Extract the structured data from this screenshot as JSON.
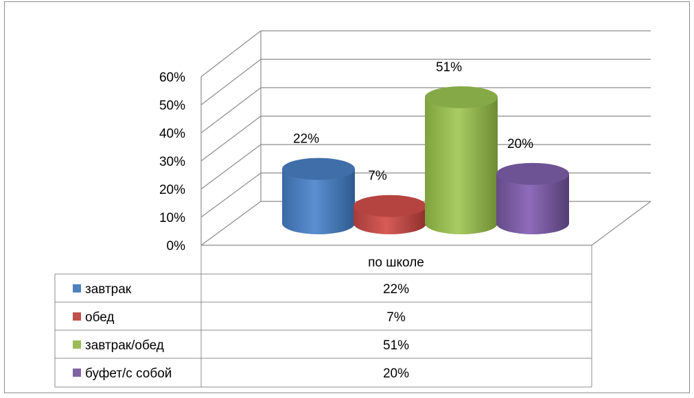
{
  "chart_data": {
    "type": "bar",
    "style": "3d-cylinder",
    "categories": [
      "по школе"
    ],
    "series": [
      {
        "name": "завтрак",
        "values": [
          22
        ],
        "label": "22%",
        "color": "#4f81bd"
      },
      {
        "name": "обед",
        "values": [
          7
        ],
        "label": "7%",
        "color": "#c0504d"
      },
      {
        "name": "завтрак/обед",
        "values": [
          51
        ],
        "label": "51%",
        "color": "#9bbb59"
      },
      {
        "name": "буфет/с собой",
        "values": [
          20
        ],
        "label": "20%",
        "color": "#8064a2"
      }
    ],
    "yticks": [
      "0%",
      "10%",
      "20%",
      "30%",
      "40%",
      "50%",
      "60%"
    ],
    "ylim": [
      0,
      60
    ],
    "grid": true,
    "legend": "data-table",
    "table_values": [
      "22%",
      "7%",
      "51%",
      "20%"
    ]
  }
}
